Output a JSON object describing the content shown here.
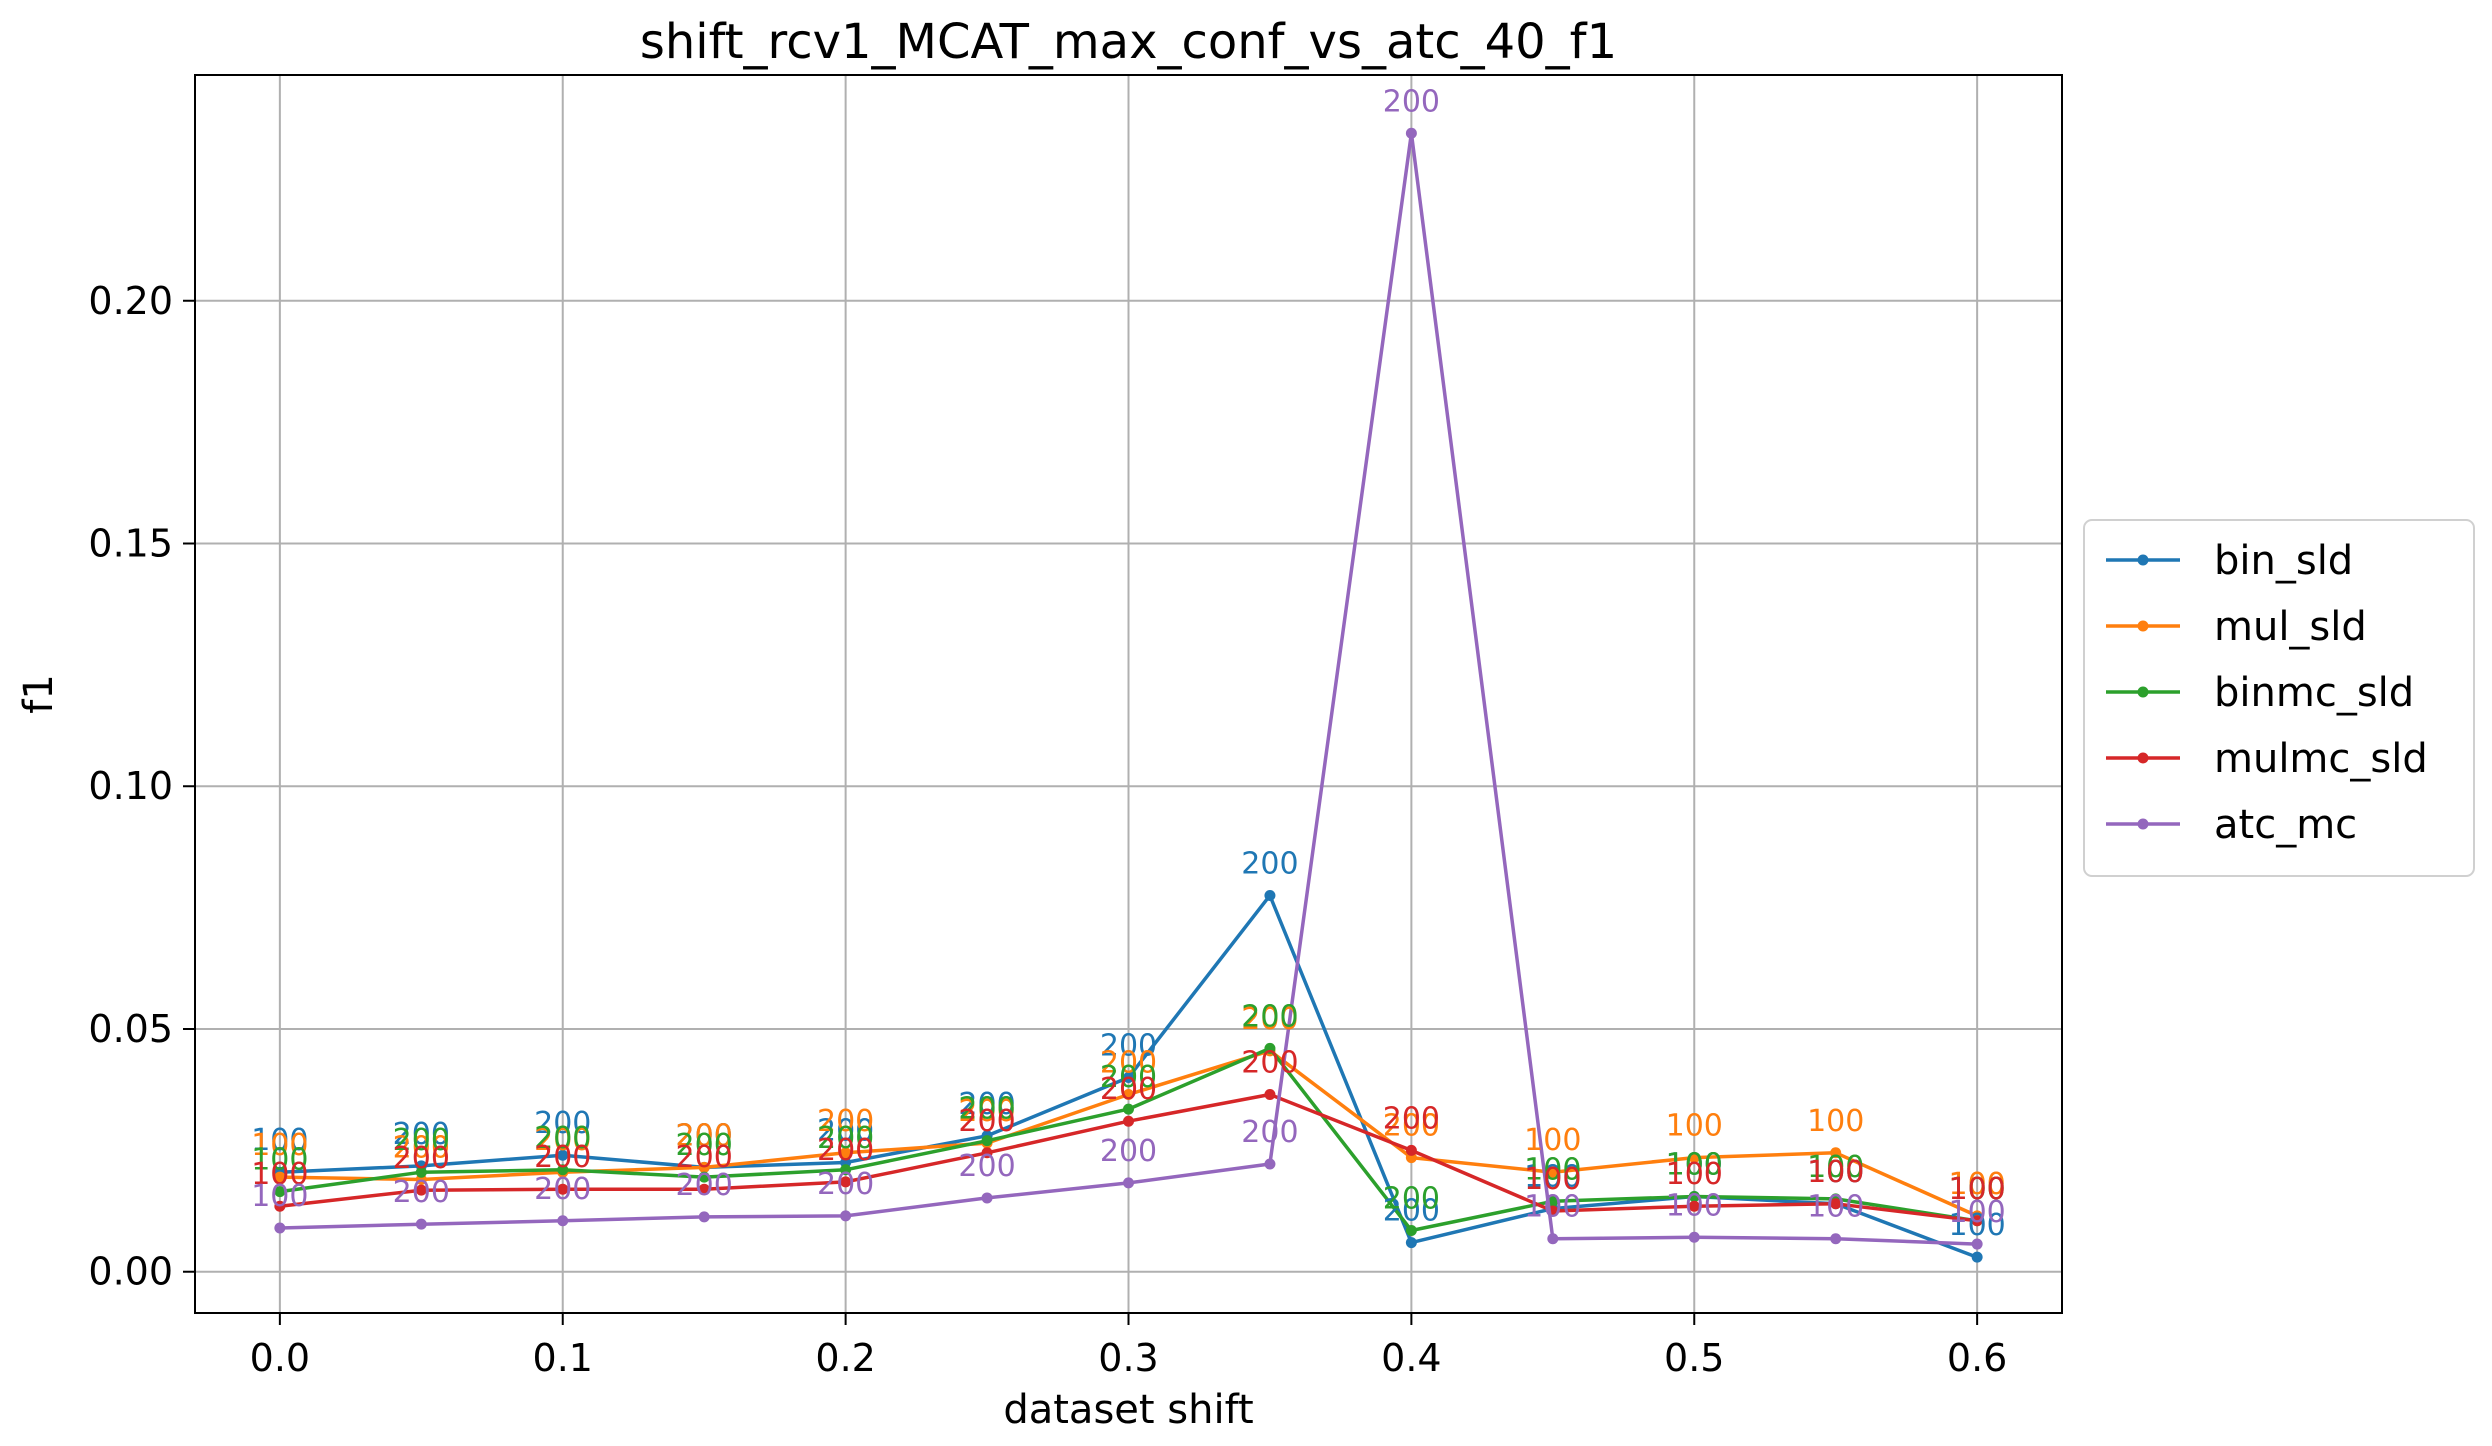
{
  "chart_data": {
    "type": "line",
    "title": "shift_rcv1_MCAT_max_conf_vs_atc_40_f1",
    "xlabel": "dataset shift",
    "ylabel": "f1",
    "x": [
      0.0,
      0.05,
      0.1,
      0.15,
      0.2,
      0.25,
      0.3,
      0.35,
      0.4,
      0.45,
      0.5,
      0.55,
      0.6
    ],
    "xlim": [
      -0.03,
      0.63
    ],
    "ylim": [
      -0.0085,
      0.2465
    ],
    "xticks": [
      0.0,
      0.1,
      0.2,
      0.3,
      0.4,
      0.5,
      0.6
    ],
    "xtick_labels": [
      "0.0",
      "0.1",
      "0.2",
      "0.3",
      "0.4",
      "0.5",
      "0.6"
    ],
    "yticks": [
      0.0,
      0.05,
      0.1,
      0.15,
      0.2
    ],
    "ytick_labels": [
      "0.00",
      "0.05",
      "0.10",
      "0.15",
      "0.20"
    ],
    "grid": true,
    "legend_position": "outside-right",
    "series": [
      {
        "name": "bin_sld",
        "color": "#1f77b4",
        "values": [
          0.0205,
          0.0218,
          0.024,
          0.0215,
          0.0225,
          0.028,
          0.04,
          0.0775,
          0.006,
          0.013,
          0.0155,
          0.014,
          0.003
        ],
        "labels": [
          "100",
          "200",
          "200",
          "200",
          "200",
          "200",
          "200",
          "200",
          "200",
          "100",
          "100",
          "100",
          "100"
        ]
      },
      {
        "name": "mul_sld",
        "color": "#ff7f0e",
        "values": [
          0.0195,
          0.019,
          0.0205,
          0.0215,
          0.0245,
          0.0265,
          0.0365,
          0.0455,
          0.0235,
          0.0205,
          0.0235,
          0.0245,
          0.0115
        ],
        "labels": [
          "100",
          "200",
          "200",
          "200",
          "200",
          "200",
          "200",
          "200",
          "200",
          "100",
          "100",
          "100",
          "100"
        ]
      },
      {
        "name": "binmc_sld",
        "color": "#2ca02c",
        "values": [
          0.0165,
          0.0205,
          0.021,
          0.0195,
          0.021,
          0.027,
          0.0335,
          0.046,
          0.0085,
          0.0145,
          0.0155,
          0.015,
          0.0105
        ],
        "labels": [
          "100",
          "200",
          "200",
          "200",
          "200",
          "200",
          "200",
          "200",
          "200",
          "100",
          "100",
          "100",
          "100"
        ]
      },
      {
        "name": "mulmc_sld",
        "color": "#d62728",
        "values": [
          0.0135,
          0.0168,
          0.017,
          0.017,
          0.0185,
          0.0245,
          0.031,
          0.0365,
          0.025,
          0.0125,
          0.0135,
          0.014,
          0.0105
        ],
        "labels": [
          "100",
          "200",
          "200",
          "200",
          "200",
          "200",
          "200",
          "200",
          "200",
          "100",
          "100",
          "100",
          "100"
        ]
      },
      {
        "name": "atc_mc",
        "color": "#9467bd",
        "values": [
          0.009,
          0.0098,
          0.0105,
          0.0113,
          0.0115,
          0.0152,
          0.0183,
          0.0222,
          0.2345,
          0.0068,
          0.0071,
          0.0068,
          0.0057
        ],
        "labels": [
          "100",
          "200",
          "200",
          "200",
          "200",
          "200",
          "200",
          "200",
          "200",
          "100",
          "100",
          "100",
          "100"
        ]
      }
    ]
  }
}
